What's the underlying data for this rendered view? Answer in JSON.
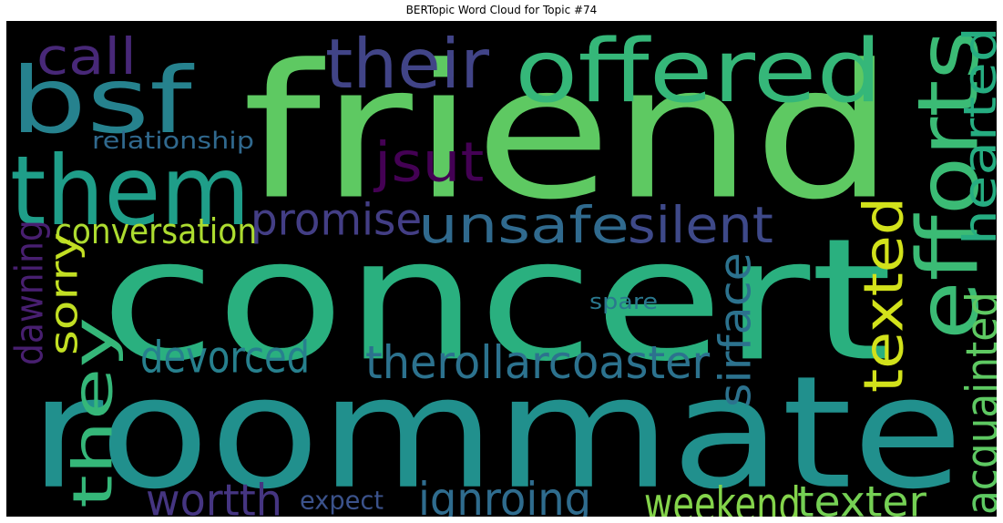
{
  "title": "BERTopic Word Cloud for Topic #74",
  "cloud": {
    "background": "#000000",
    "words": [
      {
        "text": "friend",
        "color": "#5ec962"
      },
      {
        "text": "concert",
        "color": "#2ab07f"
      },
      {
        "text": "roommate",
        "color": "#21908d"
      },
      {
        "text": "bsf",
        "color": "#26828e"
      },
      {
        "text": "them",
        "color": "#1f9e89"
      },
      {
        "text": "offered",
        "color": "#35b779"
      },
      {
        "text": "efforts",
        "color": "#3bbb75"
      },
      {
        "text": "their",
        "color": "#414487"
      },
      {
        "text": "call",
        "color": "#482878"
      },
      {
        "text": "hearted",
        "color": "#26ad81"
      },
      {
        "text": "jsut",
        "color": "#440154"
      },
      {
        "text": "relationship",
        "color": "#30698e"
      },
      {
        "text": "unsafe",
        "color": "#306a8e"
      },
      {
        "text": "silent",
        "color": "#3e4989"
      },
      {
        "text": "promise",
        "color": "#433e85"
      },
      {
        "text": "conversation",
        "color": "#addc30"
      },
      {
        "text": "texted",
        "color": "#d2e21b"
      },
      {
        "text": "dawning",
        "color": "#481f70"
      },
      {
        "text": "sorry",
        "color": "#c2df23"
      },
      {
        "text": "they",
        "color": "#35b779"
      },
      {
        "text": "acquainted",
        "color": "#5ec962"
      },
      {
        "text": "sirface",
        "color": "#2c728e"
      },
      {
        "text": "spare",
        "color": "#2a788e"
      },
      {
        "text": "devorced",
        "color": "#27808e"
      },
      {
        "text": "therollarcoaster",
        "color": "#2c728e"
      },
      {
        "text": "wortth",
        "color": "#453581"
      },
      {
        "text": "expect",
        "color": "#3b528b"
      },
      {
        "text": "ignroing",
        "color": "#2f6c8e"
      },
      {
        "text": "weekend",
        "color": "#84d44b"
      },
      {
        "text": "texter",
        "color": "#75d054"
      }
    ]
  }
}
